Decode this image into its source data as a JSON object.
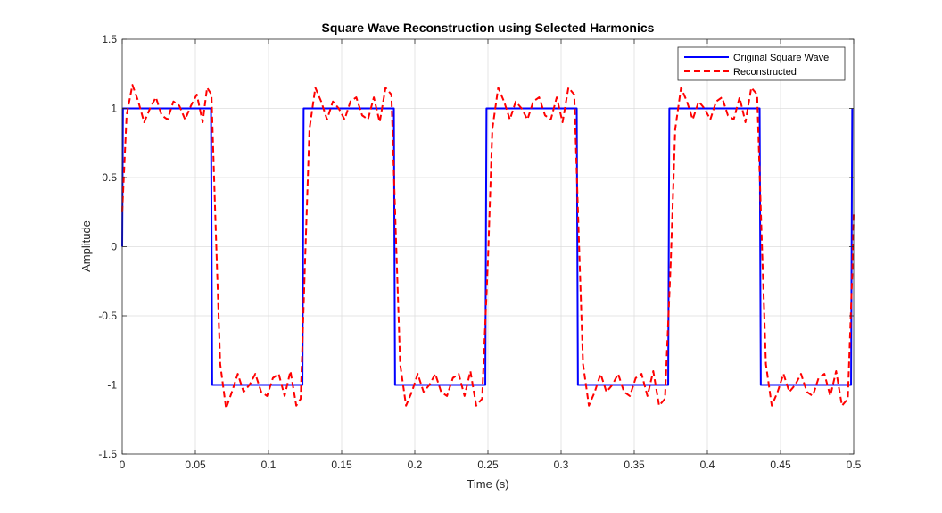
{
  "chart_data": {
    "type": "line",
    "title": "Square Wave Reconstruction using Selected Harmonics",
    "xlabel": "Time (s)",
    "ylabel": "Amplitude",
    "xlim": [
      0,
      0.5
    ],
    "ylim": [
      -1.5,
      1.5
    ],
    "xticks": [
      0,
      0.05,
      0.1,
      0.15,
      0.2,
      0.25,
      0.3,
      0.35,
      0.4,
      0.45,
      0.5
    ],
    "xtick_labels": [
      "0",
      "0.05",
      "0.1",
      "0.15",
      "0.2",
      "0.25",
      "0.3",
      "0.35",
      "0.4",
      "0.45",
      "0.5"
    ],
    "yticks": [
      -1.5,
      -1,
      -0.5,
      0,
      0.5,
      1,
      1.5
    ],
    "ytick_labels": [
      "-1.5",
      "-1",
      "-0.5",
      "0",
      "0.5",
      "1",
      "1.5"
    ],
    "grid": true,
    "legend_position": "top-right",
    "series": [
      {
        "name": "Original Square Wave",
        "color": "#0000ff",
        "style": "solid",
        "x": [
          0,
          0.0005,
          0.0607,
          0.0615,
          0.1232,
          0.124,
          0.1857,
          0.1865,
          0.2482,
          0.249,
          0.3107,
          0.3115,
          0.3732,
          0.374,
          0.4357,
          0.4365,
          0.4982,
          0.499
        ],
        "y": [
          0,
          1,
          1,
          -1,
          -1,
          1,
          1,
          -1,
          -1,
          1,
          1,
          -1,
          -1,
          1,
          1,
          -1,
          -1,
          1
        ]
      },
      {
        "name": "Reconstructed",
        "color": "#ff0000",
        "style": "dashed",
        "x": [
          0,
          0.003,
          0.007,
          0.011,
          0.015,
          0.019,
          0.023,
          0.027,
          0.031,
          0.035,
          0.039,
          0.043,
          0.047,
          0.051,
          0.055,
          0.058,
          0.061,
          0.064,
          0.067,
          0.071,
          0.075,
          0.079,
          0.083,
          0.087,
          0.091,
          0.095,
          0.099,
          0.103,
          0.107,
          0.111,
          0.115,
          0.119,
          0.122,
          0.125,
          0.128,
          0.132,
          0.136,
          0.14,
          0.144,
          0.148,
          0.152,
          0.156,
          0.16,
          0.164,
          0.168,
          0.172,
          0.176,
          0.18,
          0.184,
          0.187,
          0.19,
          0.194,
          0.198,
          0.202,
          0.206,
          0.21,
          0.214,
          0.218,
          0.222,
          0.226,
          0.23,
          0.234,
          0.238,
          0.242,
          0.246,
          0.25,
          0.253,
          0.257,
          0.261,
          0.265,
          0.269,
          0.273,
          0.277,
          0.281,
          0.285,
          0.289,
          0.293,
          0.297,
          0.301,
          0.305,
          0.309,
          0.312,
          0.315,
          0.319,
          0.323,
          0.327,
          0.331,
          0.335,
          0.339,
          0.343,
          0.347,
          0.351,
          0.355,
          0.359,
          0.363,
          0.367,
          0.371,
          0.375,
          0.378,
          0.382,
          0.386,
          0.39,
          0.394,
          0.398,
          0.402,
          0.406,
          0.41,
          0.414,
          0.418,
          0.422,
          0.426,
          0.43,
          0.434,
          0.437,
          0.44,
          0.444,
          0.448,
          0.452,
          0.456,
          0.46,
          0.464,
          0.468,
          0.472,
          0.476,
          0.48,
          0.484,
          0.488,
          0.492,
          0.496,
          0.499,
          0.5
        ],
        "y": [
          0.25,
          0.95,
          1.17,
          1.05,
          0.9,
          1.0,
          1.08,
          0.95,
          0.92,
          1.05,
          1.02,
          0.92,
          1.02,
          1.1,
          0.9,
          1.15,
          1.1,
          0.1,
          -0.85,
          -1.17,
          -1.05,
          -0.92,
          -1.05,
          -1.0,
          -0.92,
          -1.05,
          -1.08,
          -0.95,
          -0.92,
          -1.08,
          -0.9,
          -1.15,
          -1.1,
          -0.1,
          0.85,
          1.15,
          1.05,
          0.92,
          1.05,
          1.0,
          0.92,
          1.05,
          1.08,
          0.95,
          0.92,
          1.08,
          0.9,
          1.15,
          1.1,
          0.1,
          -0.85,
          -1.15,
          -1.05,
          -0.92,
          -1.05,
          -1.0,
          -0.92,
          -1.05,
          -1.08,
          -0.95,
          -0.92,
          -1.08,
          -0.9,
          -1.15,
          -1.1,
          -0.1,
          0.85,
          1.15,
          1.05,
          0.92,
          1.05,
          1.0,
          0.92,
          1.05,
          1.08,
          0.95,
          0.92,
          1.08,
          0.9,
          1.15,
          1.1,
          0.1,
          -0.85,
          -1.15,
          -1.05,
          -0.92,
          -1.05,
          -1.0,
          -0.92,
          -1.05,
          -1.08,
          -0.95,
          -0.92,
          -1.08,
          -0.9,
          -1.15,
          -1.1,
          -0.1,
          0.85,
          1.15,
          1.05,
          0.92,
          1.05,
          1.0,
          0.92,
          1.05,
          1.08,
          0.95,
          0.92,
          1.08,
          0.9,
          1.15,
          1.1,
          0.1,
          -0.85,
          -1.15,
          -1.05,
          -0.92,
          -1.05,
          -1.0,
          -0.92,
          -1.05,
          -1.08,
          -0.95,
          -0.92,
          -1.08,
          -0.9,
          -1.15,
          -1.1,
          -0.2,
          0.25
        ]
      }
    ]
  }
}
